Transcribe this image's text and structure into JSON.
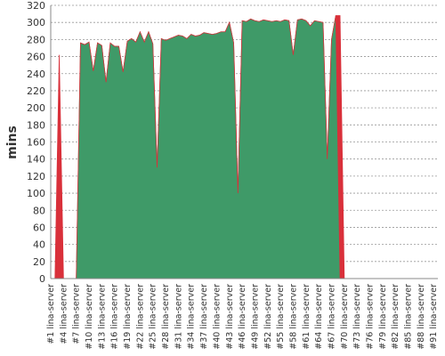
{
  "chart_data": {
    "type": "area",
    "y_label": "mins",
    "categories": [
      "#1 lina-server",
      null,
      null,
      "#4 lina-server",
      null,
      null,
      "#7 lina-server",
      null,
      null,
      "#10 lina-server",
      null,
      null,
      "#13 lina-server",
      null,
      null,
      "#16 lina-server",
      null,
      null,
      "#19 lina-server",
      null,
      null,
      "#22 lina-server",
      null,
      null,
      "#25 lina-server",
      null,
      null,
      "#28 lina-server",
      null,
      null,
      "#31 lina-server",
      null,
      null,
      "#34 lina-server",
      null,
      null,
      "#37 lina-server",
      null,
      null,
      "#40 lina-server",
      null,
      null,
      "#43 lina-server",
      null,
      null,
      "#46 lina-server",
      null,
      null,
      "#49 lina-server",
      null,
      null,
      "#52 lina-server",
      null,
      null,
      "#55 lina-server",
      null,
      null,
      "#58 lina-server",
      null,
      null,
      "#61 lina-server",
      null,
      null,
      "#64 lina-server",
      null,
      null,
      "#67 lina-server",
      null,
      null,
      "#70 lina-server",
      null,
      null,
      "#73 lina-server",
      null,
      null,
      "#76 lina-server",
      null,
      null,
      "#79 lina-server",
      null,
      null,
      "#82 lina-server",
      null,
      null,
      "#85 lina-server",
      null,
      null,
      "#88 lina-server",
      null,
      null,
      "#91 lina-server",
      null
    ],
    "series": [
      {
        "color": "#3f9a68",
        "values": [
          0,
          0,
          0,
          0,
          0,
          0,
          0,
          276,
          274,
          277,
          243,
          276,
          273,
          230,
          276,
          272,
          272,
          242,
          278,
          281,
          277,
          289,
          277,
          289,
          275,
          130,
          281,
          279,
          281,
          283,
          285,
          284,
          281,
          286,
          284,
          285,
          288,
          287,
          286,
          287,
          289,
          289,
          300,
          276,
          100,
          302,
          301,
          304,
          302,
          301,
          303,
          302,
          301,
          302,
          301,
          303,
          302,
          262,
          303,
          304,
          302,
          296,
          302,
          301,
          300,
          140,
          280,
          308,
          0,
          0,
          0,
          0,
          0,
          0,
          0,
          0,
          0,
          0,
          0,
          0,
          0,
          0,
          0,
          0,
          0,
          0,
          0,
          0,
          0,
          0,
          0,
          0
        ]
      },
      {
        "color": "#d9303a",
        "values": [
          0,
          0,
          262,
          0,
          0,
          0,
          0,
          0,
          0,
          0,
          0,
          0,
          0,
          0,
          0,
          0,
          0,
          0,
          0,
          0,
          0,
          0,
          0,
          0,
          0,
          0,
          0,
          0,
          0,
          0,
          0,
          0,
          0,
          0,
          0,
          0,
          0,
          0,
          0,
          0,
          0,
          0,
          0,
          0,
          0,
          0,
          0,
          0,
          0,
          0,
          0,
          0,
          0,
          0,
          0,
          0,
          0,
          0,
          0,
          0,
          0,
          0,
          0,
          0,
          0,
          0,
          0,
          0,
          308,
          0,
          0,
          0,
          0,
          0,
          0,
          0,
          0,
          0,
          0,
          0,
          0,
          0,
          0,
          0,
          0,
          0,
          0,
          0,
          0,
          0,
          0,
          0
        ]
      }
    ],
    "ylim": [
      0,
      320
    ],
    "yticks": [
      0,
      20,
      40,
      60,
      80,
      100,
      120,
      140,
      160,
      180,
      200,
      220,
      240,
      260,
      280,
      300,
      320
    ],
    "grid": true
  }
}
